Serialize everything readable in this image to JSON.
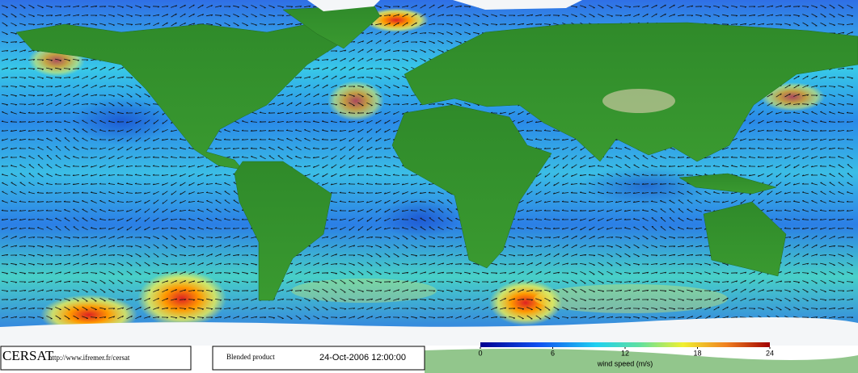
{
  "header": {
    "logo": "CERSAT",
    "url": "http://www.ifremer.fr/cersat"
  },
  "product": {
    "name": "Blended product",
    "date": "24-Oct-2006 12:00:00"
  },
  "colorbar": {
    "range": [
      0,
      24
    ],
    "ticks": [
      0,
      6,
      12,
      18,
      24
    ],
    "label": "wind speed (m/s)"
  }
}
